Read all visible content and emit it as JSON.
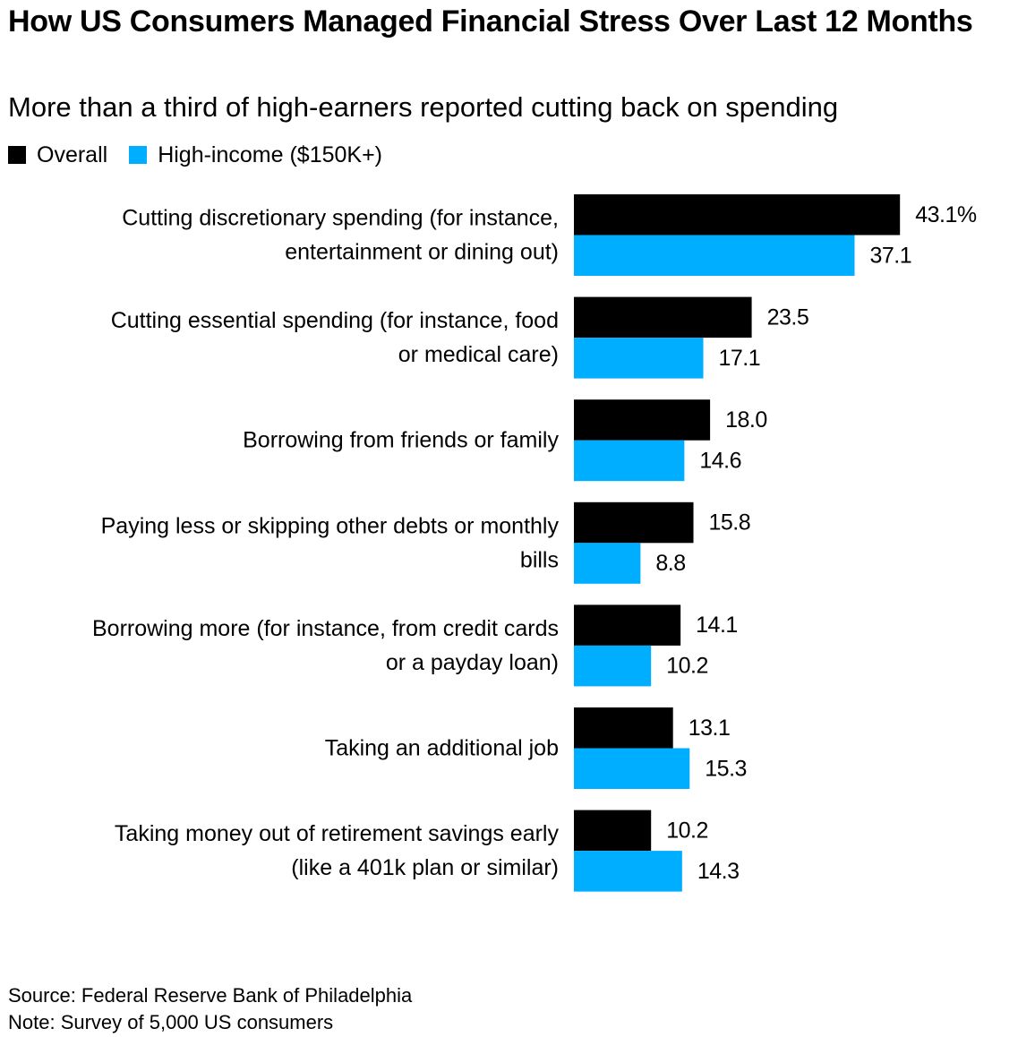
{
  "title": "How US Consumers Managed Financial Stress Over Last 12 Months",
  "subtitle": "More than a third of high-earners reported cutting back on spending",
  "colors": {
    "overall": "#000000",
    "high_income": "#00aeff"
  },
  "chart_data": {
    "type": "bar",
    "orientation": "horizontal",
    "categories": [
      [
        "Cutting discretionary spending (for instance,",
        "entertainment or dining out)"
      ],
      [
        "Cutting essential spending (for instance, food",
        "or medical care)"
      ],
      [
        "Borrowing from friends or family"
      ],
      [
        "Paying less or skipping other debts or monthly",
        "bills"
      ],
      [
        "Borrowing more (for instance, from credit cards",
        "or a payday loan)"
      ],
      [
        "Taking an additional job"
      ],
      [
        "Taking money out of retirement savings early",
        "(like a 401k plan or similar)"
      ]
    ],
    "series": [
      {
        "name": "Overall",
        "values": [
          43.1,
          23.5,
          18.0,
          15.8,
          14.1,
          13.1,
          10.2
        ],
        "labels": [
          "43.1%",
          "23.5",
          "18.0",
          "15.8",
          "14.1",
          "13.1",
          "10.2"
        ]
      },
      {
        "name": "High-income ($150K+)",
        "values": [
          37.1,
          17.1,
          14.6,
          8.8,
          10.2,
          15.3,
          14.3
        ],
        "labels": [
          "37.1",
          "17.1",
          "14.6",
          "8.8",
          "10.2",
          "15.3",
          "14.3"
        ]
      }
    ],
    "xlim": [
      0,
      60
    ],
    "grid": false,
    "legend": "top-left"
  },
  "footer": {
    "source": "Source: Federal Reserve Bank of Philadelphia",
    "note": "Note: Survey of 5,000 US consumers"
  }
}
